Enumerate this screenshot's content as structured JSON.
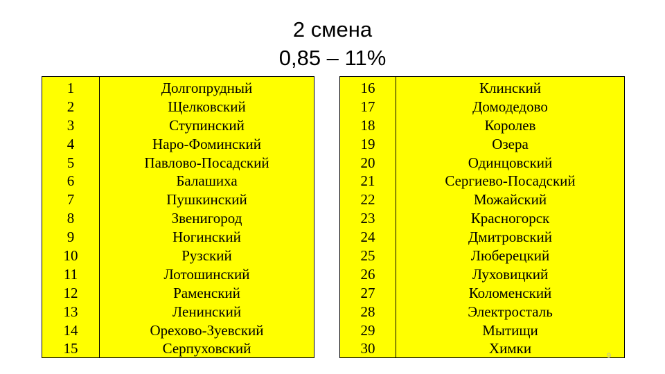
{
  "title": {
    "line1": "2 смена",
    "line2": "0,85 – 11%"
  },
  "left_table": {
    "numbers": [
      "1",
      "2",
      "3",
      "4",
      "5",
      "6",
      "7",
      "8",
      "9",
      "10",
      "11",
      "12",
      "13",
      "14",
      "15"
    ],
    "names": [
      "Долгопрудный",
      "Щелковский",
      "Ступинский",
      "Наро-Фоминский",
      "Павлово-Посадский",
      "Балашиха",
      "Пушкинский",
      "Звенигород",
      "Ногинский",
      "Рузский",
      "Лотошинский",
      "Раменский",
      "Ленинский",
      "Орехово-Зуевский",
      "Серпуховский"
    ]
  },
  "right_table": {
    "numbers": [
      "16",
      "17",
      "18",
      "19",
      "20",
      "21",
      "22",
      "23",
      "24",
      "25",
      "26",
      "27",
      "28",
      "29",
      "30"
    ],
    "names": [
      "Клинский",
      "Домодедово",
      "Королев",
      "Озера",
      "Одинцовский",
      "Сергиево-Посадский",
      "Можайский",
      "Красногорск",
      "Дмитровский",
      "Люберецкий",
      "Луховицкий",
      "Коломенский",
      "Электросталь",
      "Мытищи",
      "Химки"
    ]
  },
  "page_number": "9",
  "colors": {
    "table_fill": "#ffff00",
    "border": "#000000",
    "page_number": "#b5b5b5"
  }
}
